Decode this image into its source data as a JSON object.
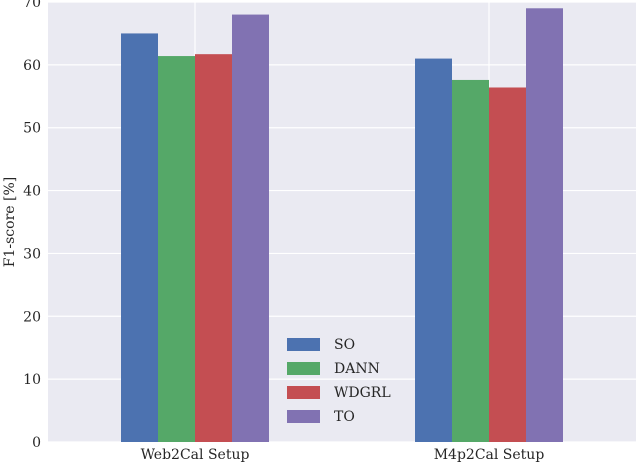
{
  "chart_data": {
    "type": "bar",
    "title": "",
    "xlabel": "",
    "ylabel": "F1-score [%]",
    "ylim": [
      0,
      70
    ],
    "yticks": [
      0,
      10,
      20,
      30,
      40,
      50,
      60,
      70
    ],
    "categories": [
      "Web2Cal Setup",
      "M4p2Cal Setup"
    ],
    "series": [
      {
        "name": "SO",
        "color": "#4c72b0",
        "values": [
          65.0,
          61.0
        ]
      },
      {
        "name": "DANN",
        "color": "#55a868",
        "values": [
          61.4,
          57.6
        ]
      },
      {
        "name": "WDGRL",
        "color": "#c44e52",
        "values": [
          61.7,
          56.4
        ]
      },
      {
        "name": "TO",
        "color": "#8172b2",
        "values": [
          68.0,
          69.0
        ]
      }
    ],
    "grid": true,
    "background": "#eaeaf2",
    "legend_position": "lower-center"
  }
}
